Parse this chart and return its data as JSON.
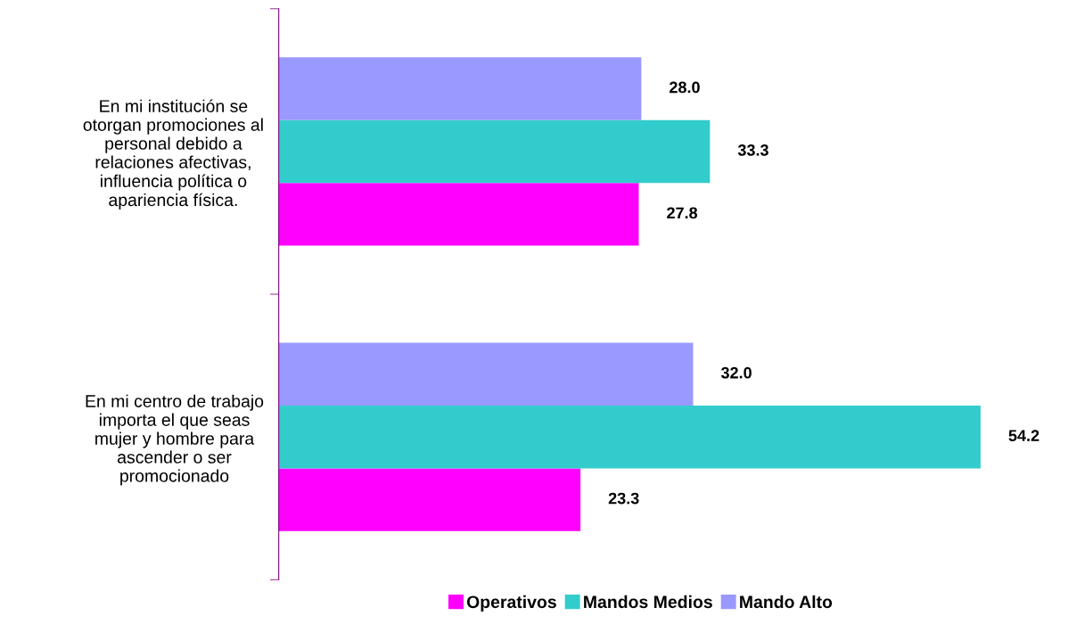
{
  "chart_data": {
    "type": "bar",
    "orientation": "horizontal",
    "categories": [
      "En mi institución se\notorgan promociones al\npersonal debido a\nrelaciones afectivas,\ninfluencia política o\napariencia física.",
      "En mi centro de trabajo\nimporta el que seas\nmujer y hombre para\nascender o ser\npromocionado"
    ],
    "series": [
      {
        "name": "Operativos",
        "color": "#ff00ff",
        "values": [
          27.8,
          23.3
        ],
        "value_labels": [
          "27.8",
          "23.3"
        ]
      },
      {
        "name": "Mandos Medios",
        "color": "#33cccc",
        "values": [
          33.3,
          54.2
        ],
        "value_labels": [
          "33.3",
          "54.2"
        ]
      },
      {
        "name": "Mando Alto",
        "color": "#9999ff",
        "values": [
          28.0,
          32.0
        ],
        "value_labels": [
          "28.0",
          "32.0"
        ]
      }
    ],
    "tick_labels": "y",
    "legend": "bottom",
    "grid": false
  }
}
